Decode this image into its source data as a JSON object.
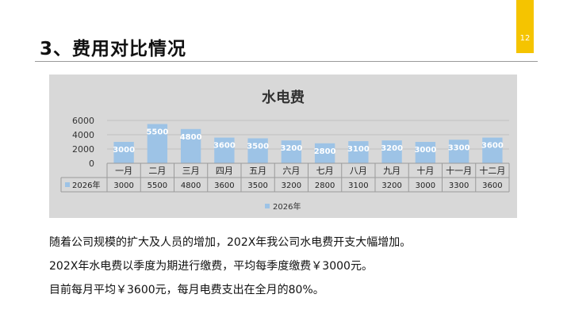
{
  "slide": {
    "title": "3、费用对比情况",
    "page_number": "12",
    "accent_color": "#f5c400"
  },
  "chart_data": {
    "type": "bar",
    "title": "水电费",
    "categories": [
      "一月",
      "二月",
      "三月",
      "四月",
      "五月",
      "六月",
      "七月",
      "八月",
      "九月",
      "十月",
      "十一月",
      "十二月"
    ],
    "series": [
      {
        "name": "2026年",
        "values": [
          3000,
          5500,
          4800,
          3600,
          3500,
          3200,
          2800,
          3100,
          3200,
          3000,
          3300,
          3600
        ],
        "color": "#9dc3e6"
      }
    ],
    "y_ticks": [
      "0",
      "2000",
      "4000",
      "6000"
    ],
    "ylim": [
      0,
      6000
    ],
    "grid": true,
    "data_table": true,
    "legend_position": "bottom",
    "background": "#d8d8d8"
  },
  "body": {
    "lines": [
      "随着公司规模的扩大及人员的增加，202X年我公司水电费开支大幅增加。",
      "202X年水电费以季度为期进行缴费，平均每季度缴费￥3000元。",
      "目前每月平均￥3600元，每月电费支出在全月的80%。"
    ]
  }
}
